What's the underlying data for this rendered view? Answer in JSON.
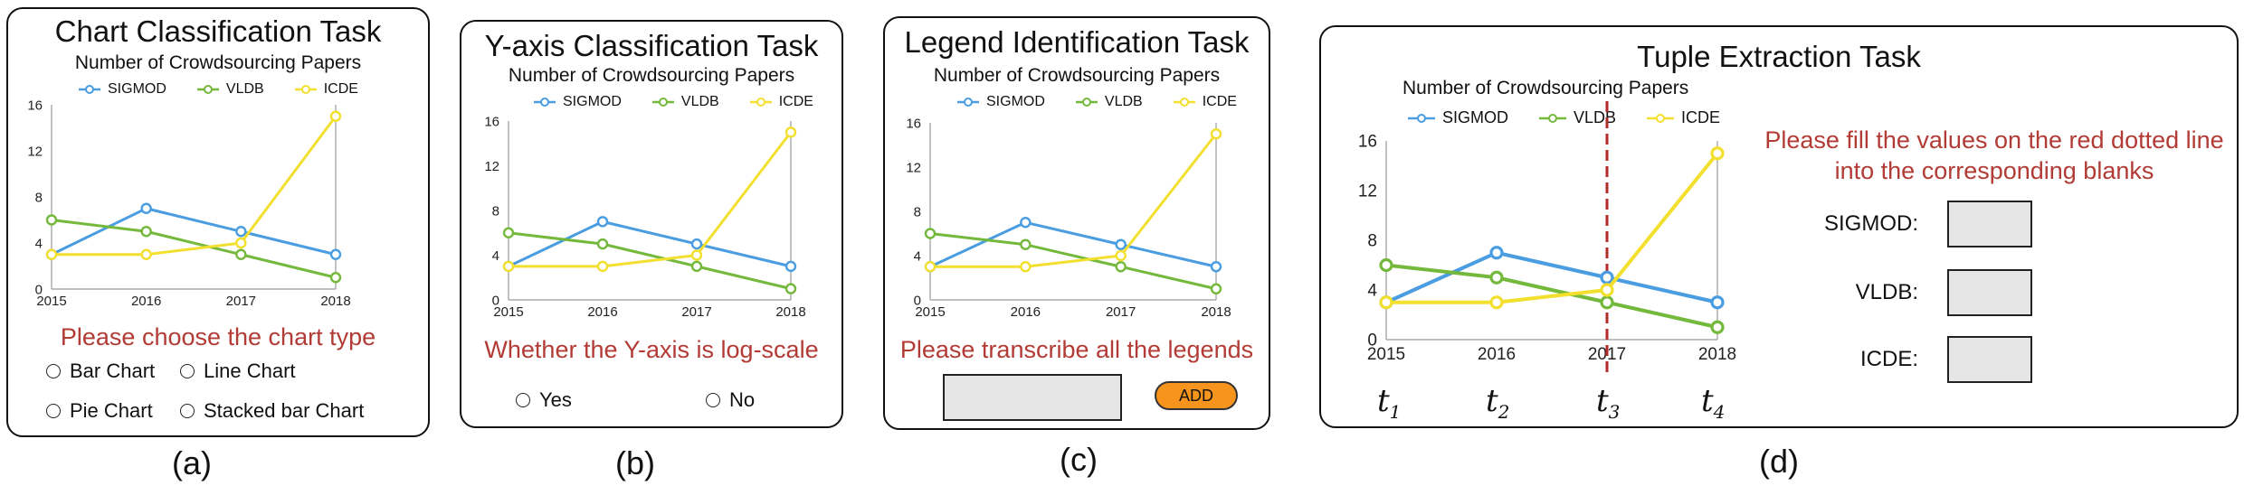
{
  "panels": {
    "a": {
      "title": "Chart Classification Task",
      "caption": "(a)",
      "instruction": "Please choose the chart type",
      "options": [
        "Bar Chart",
        "Line Chart",
        "Pie Chart",
        "Stacked bar Chart"
      ]
    },
    "b": {
      "title": "Y-axis Classification Task",
      "caption": "(b)",
      "instruction": "Whether the Y-axis is log-scale",
      "options": [
        "Yes",
        "No"
      ]
    },
    "c": {
      "title": "Legend Identification Task",
      "caption": "(c)",
      "instruction": "Please transcribe all the legends",
      "input_value": "",
      "add_label": "ADD"
    },
    "d": {
      "title": "Tuple Extraction Task",
      "caption": "(d)",
      "instruction_line1": "Please fill the values on the red dotted line",
      "instruction_line2": "into the corresponding blanks",
      "fields": [
        {
          "label": "SIGMOD:",
          "value": ""
        },
        {
          "label": "VLDB:",
          "value": ""
        },
        {
          "label": "ICDE:",
          "value": ""
        }
      ],
      "t_labels": [
        "t",
        "t",
        "t",
        "t"
      ],
      "t_subscripts": [
        "1",
        "2",
        "3",
        "4"
      ],
      "marker_x": 2017
    }
  },
  "colors": {
    "SIGMOD": "#4a9de0",
    "VLDB": "#74b83c",
    "ICDE": "#f2df2e",
    "instruction": "#b23b35",
    "marker_line": "#b22a2a",
    "add_button": "#f7941d"
  },
  "chart_data": {
    "type": "line",
    "title": "Number of Crowdsourcing Papers",
    "categories": [
      "2015",
      "2016",
      "2017",
      "2018"
    ],
    "x": [
      2015,
      2016,
      2017,
      2018
    ],
    "yticks": [
      "0",
      "4",
      "8",
      "12",
      "16"
    ],
    "ylim": [
      0,
      16
    ],
    "grid": false,
    "legend_position": "top",
    "series": [
      {
        "name": "SIGMOD",
        "values": [
          3,
          7,
          5,
          3
        ]
      },
      {
        "name": "VLDB",
        "values": [
          6,
          5,
          3,
          1
        ]
      },
      {
        "name": "ICDE",
        "values": [
          3,
          3,
          4,
          15
        ]
      }
    ]
  }
}
